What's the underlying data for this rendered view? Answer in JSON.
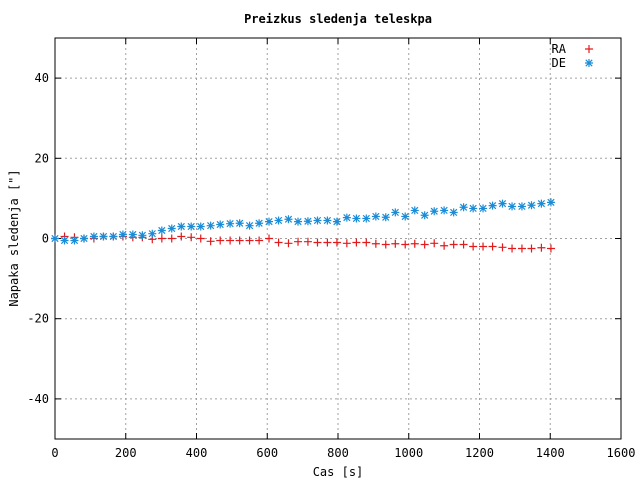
{
  "chart_data": {
    "type": "scatter",
    "title": "Preizkus sledenja teleskpa",
    "xlabel": "Cas [s]",
    "ylabel": "Napaka sledenja [\"]",
    "xlim": [
      0,
      1600
    ],
    "ylim": [
      -50,
      50
    ],
    "xticks": [
      0,
      200,
      400,
      600,
      800,
      1000,
      1200,
      1400,
      1600
    ],
    "yticks": [
      -40,
      -20,
      0,
      20,
      40
    ],
    "grid": true,
    "legend_position": "top-right",
    "series": [
      {
        "name": "RA",
        "marker": "plus",
        "color": "#e31a1c",
        "points": [
          [
            0,
            0
          ],
          [
            27,
            0.5
          ],
          [
            55,
            0.3
          ],
          [
            82,
            0
          ],
          [
            110,
            0
          ],
          [
            137,
            0.5
          ],
          [
            165,
            0.5
          ],
          [
            192,
            0.5
          ],
          [
            220,
            0.3
          ],
          [
            247,
            0.3
          ],
          [
            275,
            -0.2
          ],
          [
            302,
            0
          ],
          [
            330,
            0
          ],
          [
            357,
            0.5
          ],
          [
            385,
            0.3
          ],
          [
            412,
            0
          ],
          [
            440,
            -0.7
          ],
          [
            467,
            -0.5
          ],
          [
            495,
            -0.5
          ],
          [
            522,
            -0.5
          ],
          [
            550,
            -0.5
          ],
          [
            577,
            -0.5
          ],
          [
            605,
            0
          ],
          [
            632,
            -1
          ],
          [
            660,
            -1.2
          ],
          [
            687,
            -0.8
          ],
          [
            715,
            -0.8
          ],
          [
            742,
            -1
          ],
          [
            770,
            -1
          ],
          [
            797,
            -1
          ],
          [
            825,
            -1.2
          ],
          [
            852,
            -1
          ],
          [
            880,
            -1
          ],
          [
            907,
            -1.3
          ],
          [
            935,
            -1.5
          ],
          [
            962,
            -1.3
          ],
          [
            990,
            -1.5
          ],
          [
            1017,
            -1.3
          ],
          [
            1045,
            -1.5
          ],
          [
            1072,
            -1.2
          ],
          [
            1100,
            -1.8
          ],
          [
            1127,
            -1.5
          ],
          [
            1155,
            -1.5
          ],
          [
            1182,
            -2
          ],
          [
            1210,
            -2
          ],
          [
            1237,
            -2
          ],
          [
            1265,
            -2.2
          ],
          [
            1292,
            -2.5
          ],
          [
            1320,
            -2.5
          ],
          [
            1347,
            -2.5
          ],
          [
            1375,
            -2.3
          ],
          [
            1402,
            -2.5
          ]
        ]
      },
      {
        "name": "DE",
        "marker": "star",
        "color": "#1a8cd8",
        "points": [
          [
            0,
            0
          ],
          [
            27,
            -0.5
          ],
          [
            55,
            -0.5
          ],
          [
            82,
            0
          ],
          [
            110,
            0.5
          ],
          [
            137,
            0.5
          ],
          [
            165,
            0.5
          ],
          [
            192,
            1
          ],
          [
            220,
            1
          ],
          [
            247,
            0.8
          ],
          [
            275,
            1.2
          ],
          [
            302,
            2
          ],
          [
            330,
            2.5
          ],
          [
            357,
            3
          ],
          [
            385,
            3
          ],
          [
            412,
            3
          ],
          [
            440,
            3.2
          ],
          [
            467,
            3.5
          ],
          [
            495,
            3.7
          ],
          [
            522,
            3.8
          ],
          [
            550,
            3.2
          ],
          [
            577,
            3.8
          ],
          [
            605,
            4.2
          ],
          [
            632,
            4.5
          ],
          [
            660,
            4.8
          ],
          [
            687,
            4.2
          ],
          [
            715,
            4.3
          ],
          [
            742,
            4.5
          ],
          [
            770,
            4.5
          ],
          [
            797,
            4.2
          ],
          [
            825,
            5.2
          ],
          [
            852,
            5
          ],
          [
            880,
            5
          ],
          [
            907,
            5.5
          ],
          [
            935,
            5.3
          ],
          [
            962,
            6.5
          ],
          [
            990,
            5.5
          ],
          [
            1017,
            7
          ],
          [
            1045,
            5.8
          ],
          [
            1072,
            6.8
          ],
          [
            1100,
            7
          ],
          [
            1127,
            6.5
          ],
          [
            1155,
            7.8
          ],
          [
            1182,
            7.5
          ],
          [
            1210,
            7.5
          ],
          [
            1237,
            8.2
          ],
          [
            1265,
            8.7
          ],
          [
            1292,
            8
          ],
          [
            1320,
            8
          ],
          [
            1347,
            8.3
          ],
          [
            1375,
            8.7
          ],
          [
            1402,
            9
          ]
        ]
      }
    ]
  }
}
